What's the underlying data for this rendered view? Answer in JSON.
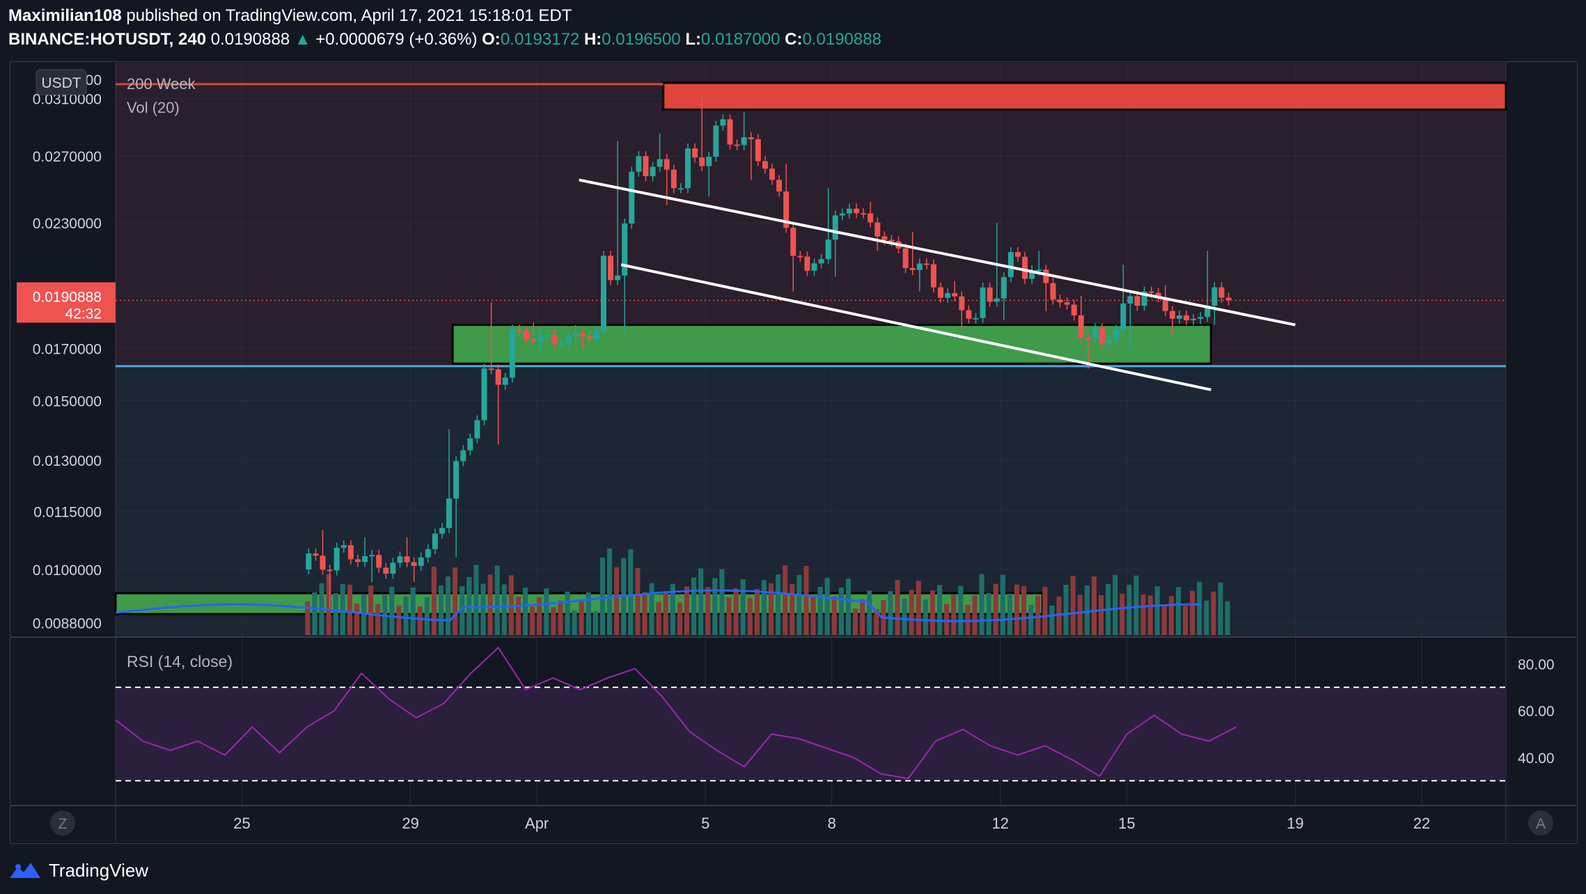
{
  "header": {
    "author": "Maximilian108",
    "published_text": "published on TradingView.com, April 17, 2021 15:18:01 EDT",
    "symbol": "BINANCE:HOTUSDT, 240",
    "last_price": "0.0190888",
    "change": "+0.0000679 (+0.36%)",
    "open_label": "O:",
    "open": "0.0193172",
    "high_label": "H:",
    "high": "0.0196500",
    "low_label": "L:",
    "low": "0.0187000",
    "close_label": "C:",
    "close": "0.0190888"
  },
  "footer": {
    "brand": "TradingView"
  },
  "colors": {
    "background": "#131722",
    "up": "#26a69a",
    "down": "#ef5350",
    "resistance_zone": "#e0443b",
    "support_zone": "#3f9a4a",
    "support_line": "#4ea8de",
    "rsi_line": "#9c27b0",
    "vol_ma": "#2962ff"
  },
  "chart_data": {
    "type": "candlestick",
    "indicators": [
      "200 Week",
      "Vol (20)"
    ],
    "currency_label": "USDT",
    "price_axis_ticks": [
      "0.0310000",
      "0.0270000",
      "0.0230000",
      "0.0190888",
      "0.0170000",
      "0.0150000",
      "0.0130000",
      "0.0115000",
      "0.0100000",
      "0.0088000"
    ],
    "price_axis_top_partial": "00",
    "current_price_label": "0.0190888",
    "countdown": "42:32",
    "x_tick_labels": [
      "25",
      "29",
      "Apr",
      "5",
      "8",
      "12",
      "15",
      "19",
      "22"
    ],
    "x_range": [
      "2021-03-22",
      "2021-04-24"
    ],
    "y_range_log": [
      0.0085,
      0.0338
    ],
    "scale": "log",
    "resistance_zone": {
      "from": "2021-04-04",
      "to": "2021-04-24",
      "low": 0.0302,
      "high": 0.0322
    },
    "support_zone": {
      "from": "2021-03-30",
      "to": "2021-04-17",
      "low": 0.0164,
      "high": 0.018
    },
    "volume_zone": {
      "from": "2021-03-22",
      "to": "2021-04-13"
    },
    "horizontal_lines": [
      {
        "price": 0.0321,
        "color": "#e0443b",
        "from": "2021-03-22",
        "to": "2021-04-04"
      },
      {
        "price": 0.0163,
        "color": "#4ea8de",
        "from": "2021-03-22",
        "to": "2021-04-24"
      }
    ],
    "trendlines": [
      {
        "from": [
          "2021-04-02",
          0.0255
        ],
        "to": [
          "2021-04-19",
          0.018
        ]
      },
      {
        "from": [
          "2021-04-03",
          0.0208
        ],
        "to": [
          "2021-04-17",
          0.0154
        ]
      }
    ],
    "candles": [
      {
        "d": "2021-03-27",
        "o": 0.01,
        "h": 0.011,
        "l": 0.0091,
        "c": 0.0106
      },
      {
        "d": "2021-03-28",
        "o": 0.0106,
        "h": 0.0108,
        "l": 0.0097,
        "c": 0.0099
      },
      {
        "d": "2021-03-29",
        "o": 0.0099,
        "h": 0.0108,
        "l": 0.0097,
        "c": 0.0105
      },
      {
        "d": "2021-03-30",
        "o": 0.0105,
        "h": 0.014,
        "l": 0.0103,
        "c": 0.0137
      },
      {
        "d": "2021-03-31",
        "o": 0.0137,
        "h": 0.019,
        "l": 0.0135,
        "c": 0.0178
      },
      {
        "d": "2021-04-01",
        "o": 0.0178,
        "h": 0.0181,
        "l": 0.0168,
        "c": 0.0172
      },
      {
        "d": "2021-04-02",
        "o": 0.0172,
        "h": 0.018,
        "l": 0.017,
        "c": 0.0177
      },
      {
        "d": "2021-04-03",
        "o": 0.0177,
        "h": 0.028,
        "l": 0.0176,
        "c": 0.027
      },
      {
        "d": "2021-04-04",
        "o": 0.027,
        "h": 0.0285,
        "l": 0.024,
        "c": 0.025
      },
      {
        "d": "2021-04-05",
        "o": 0.025,
        "h": 0.0312,
        "l": 0.0245,
        "c": 0.0295
      },
      {
        "d": "2021-04-06",
        "o": 0.0295,
        "h": 0.03,
        "l": 0.0255,
        "c": 0.0262
      },
      {
        "d": "2021-04-07",
        "o": 0.0262,
        "h": 0.0265,
        "l": 0.0195,
        "c": 0.0205
      },
      {
        "d": "2021-04-08",
        "o": 0.0205,
        "h": 0.025,
        "l": 0.0202,
        "c": 0.0238
      },
      {
        "d": "2021-04-09",
        "o": 0.0238,
        "h": 0.0242,
        "l": 0.0215,
        "c": 0.022
      },
      {
        "d": "2021-04-10",
        "o": 0.022,
        "h": 0.0225,
        "l": 0.0195,
        "c": 0.0197
      },
      {
        "d": "2021-04-11",
        "o": 0.0197,
        "h": 0.02,
        "l": 0.0178,
        "c": 0.0183
      },
      {
        "d": "2021-04-12",
        "o": 0.0183,
        "h": 0.023,
        "l": 0.0182,
        "c": 0.0212
      },
      {
        "d": "2021-04-13",
        "o": 0.0212,
        "h": 0.0215,
        "l": 0.0186,
        "c": 0.019
      },
      {
        "d": "2021-04-14",
        "o": 0.019,
        "h": 0.0193,
        "l": 0.0162,
        "c": 0.0172
      },
      {
        "d": "2021-04-15",
        "o": 0.0172,
        "h": 0.0208,
        "l": 0.017,
        "c": 0.0195
      },
      {
        "d": "2021-04-16",
        "o": 0.0195,
        "h": 0.0198,
        "l": 0.0176,
        "c": 0.0182
      },
      {
        "d": "2021-04-17",
        "o": 0.0182,
        "h": 0.0215,
        "l": 0.018,
        "c": 0.0191
      }
    ],
    "rsi": {
      "label": "RSI (14, close)",
      "ticks": [
        "80.00",
        "60.00",
        "40.00"
      ],
      "overbought": 70,
      "oversold": 30,
      "values": [
        56,
        47,
        43,
        47,
        41,
        53,
        42,
        53,
        60,
        76,
        65,
        57,
        63,
        76,
        87,
        69,
        74,
        69,
        74,
        78,
        66,
        51,
        43,
        36,
        50,
        48,
        44,
        40,
        33,
        31,
        47,
        52,
        45,
        41,
        45,
        39,
        32,
        50,
        58,
        50,
        47,
        53
      ]
    }
  }
}
